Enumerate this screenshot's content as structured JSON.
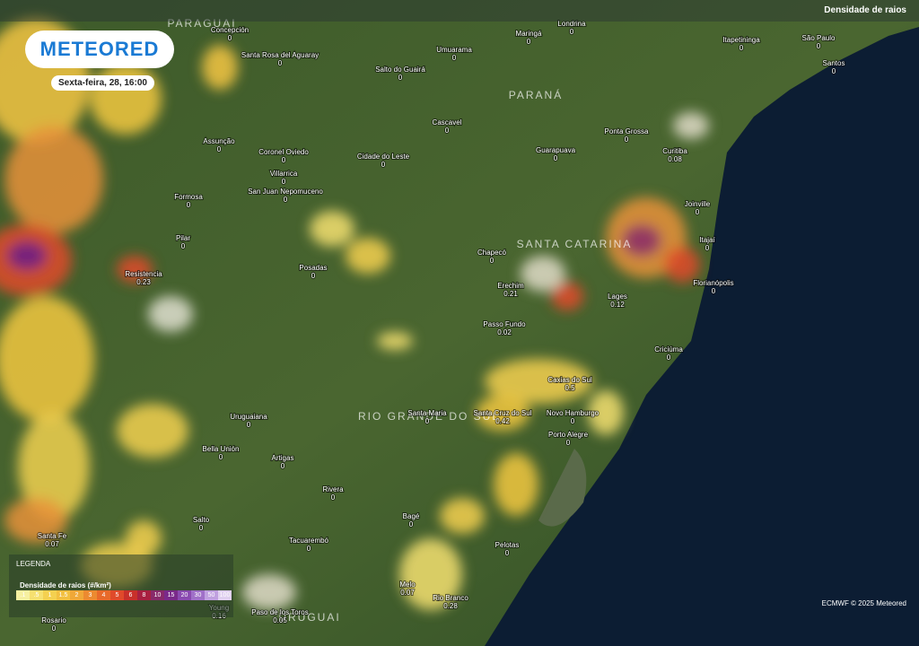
{
  "header": {
    "brand": "METEORED",
    "datetime": "Sexta-feira, 28, 16:00",
    "layer": "Densidade de raios"
  },
  "regions": [
    "PARAGUAI",
    "PARANÁ",
    "SANTA CATARINA",
    "RIO GRANDE DO SUL",
    "URUGUAI"
  ],
  "cities": [
    {
      "name": "Concepción",
      "value": 0
    },
    {
      "name": "Santa Rosa del Aguaray",
      "value": 0
    },
    {
      "name": "Salto do Guairá",
      "value": 0
    },
    {
      "name": "Umuarama",
      "value": 0
    },
    {
      "name": "Maringá",
      "value": 0
    },
    {
      "name": "Londrina",
      "value": 0
    },
    {
      "name": "Itapetininga",
      "value": 0
    },
    {
      "name": "São Paulo",
      "value": 0
    },
    {
      "name": "Santos",
      "value": 0
    },
    {
      "name": "Assunção",
      "value": 0
    },
    {
      "name": "Coronel Oviedo",
      "value": 0
    },
    {
      "name": "Cidade do Leste",
      "value": 0
    },
    {
      "name": "Cascavel",
      "value": 0
    },
    {
      "name": "Guarapuava",
      "value": 0
    },
    {
      "name": "Ponta Grossa",
      "value": 0
    },
    {
      "name": "Curitiba",
      "value": 0.08
    },
    {
      "name": "Villarrica",
      "value": 0
    },
    {
      "name": "San Juan Nepomuceno",
      "value": 0
    },
    {
      "name": "Formosa",
      "value": 0
    },
    {
      "name": "Joinville",
      "value": 0
    },
    {
      "name": "Pilar",
      "value": 0
    },
    {
      "name": "Itajaí",
      "value": 0
    },
    {
      "name": "Chapecó",
      "value": 0
    },
    {
      "name": "Posadas",
      "value": 0
    },
    {
      "name": "Resistencia",
      "value": 0.23
    },
    {
      "name": "Erechim",
      "value": 0.21
    },
    {
      "name": "Lages",
      "value": 0.12
    },
    {
      "name": "Florianópolis",
      "value": 0
    },
    {
      "name": "Passo Fundo",
      "value": 0.02
    },
    {
      "name": "Criciúma",
      "value": 0
    },
    {
      "name": "Caxias do Sul",
      "value": 0.5
    },
    {
      "name": "Uruguaiana",
      "value": 0
    },
    {
      "name": "Santa Maria",
      "value": 0
    },
    {
      "name": "Santa Cruz do Sul",
      "value": 0.42
    },
    {
      "name": "Novo Hamburgo",
      "value": 0
    },
    {
      "name": "Porto Alegre",
      "value": 0
    },
    {
      "name": "Bella Unión",
      "value": 0
    },
    {
      "name": "Artigas",
      "value": 0
    },
    {
      "name": "Rivera",
      "value": 0
    },
    {
      "name": "Salto",
      "value": 0
    },
    {
      "name": "Santa Fe",
      "value": 0.07
    },
    {
      "name": "Bagé",
      "value": 0
    },
    {
      "name": "Tacuarembó",
      "value": 0
    },
    {
      "name": "Pelotas",
      "value": 0
    },
    {
      "name": "Melo",
      "value": 0.07
    },
    {
      "name": "Rio Branco",
      "value": 0.28
    },
    {
      "name": "Paso de los Toros",
      "value": 0.05
    },
    {
      "name": "Young",
      "value": 0.16
    },
    {
      "name": "Rosario",
      "value": 0
    }
  ],
  "legend": {
    "title": "LEGENDA",
    "subtitle": "Densidade de raios (#/km²)",
    "steps": [
      ".1",
      ".5",
      "1",
      "1.5",
      "2",
      "3",
      "4",
      "5",
      "6",
      "8",
      "10",
      "15",
      "20",
      "30",
      "50",
      "100"
    ]
  },
  "footer": "ECMWF © 2025 Meteored"
}
